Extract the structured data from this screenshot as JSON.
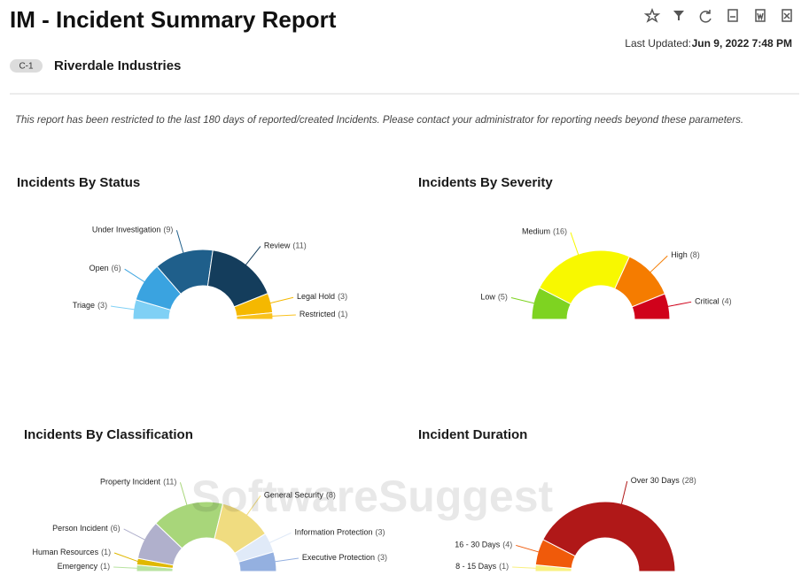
{
  "header": {
    "title": "IM - Incident Summary Report",
    "last_updated_label": "Last Updated:",
    "last_updated": "Jun 9, 2022 7:48 PM",
    "badge": "C-1",
    "organization": "Riverdale Industries"
  },
  "notice": "This report has been restricted to the last 180 days of reported/created Incidents. Please contact your administrator for reporting needs beyond these parameters.",
  "watermark": "SoftwareSuggest",
  "chart_data": [
    {
      "type": "halfdonut",
      "title": "Incidents By Status",
      "categories": [
        "Triage",
        "Open",
        "Under Investigation",
        "Review",
        "Legal Hold",
        "Restricted"
      ],
      "values": [
        3,
        6,
        9,
        11,
        3,
        1
      ],
      "value_labels": [
        "(3)",
        "(6)",
        "(9)",
        "(11)",
        "(3)",
        "(1)"
      ],
      "colors": [
        "#7fd0f5",
        "#3aa3e0",
        "#1f5f8b",
        "#143d5c",
        "#f5b800",
        "#f9c21e"
      ]
    },
    {
      "type": "halfdonut",
      "title": "Incidents By Severity",
      "categories": [
        "Low",
        "Medium",
        "High",
        "Critical"
      ],
      "values": [
        5,
        16,
        8,
        4
      ],
      "value_labels": [
        "(5)",
        "(16)",
        "(8)",
        "(4)"
      ],
      "colors": [
        "#7ed321",
        "#f8f800",
        "#f57c00",
        "#d0021b"
      ]
    },
    {
      "type": "halfdonut",
      "title": "Incidents By Classification",
      "categories": [
        "Emergency",
        "Human Resources",
        "Person Incident",
        "Property Incident",
        "General Security",
        "Information Protection",
        "Executive Protection"
      ],
      "values": [
        1,
        1,
        6,
        11,
        8,
        3,
        3
      ],
      "value_labels": [
        "(1)",
        "(1)",
        "(6)",
        "(11)",
        "(8)",
        "(3)",
        "(3)"
      ],
      "colors": [
        "#b8e3a0",
        "#e0b800",
        "#b0b0cc",
        "#a8d67a",
        "#f0dc80",
        "#e0eaf8",
        "#94b0e0"
      ]
    },
    {
      "type": "halfdonut",
      "title": "Incident Duration",
      "categories": [
        "8 - 15 Days",
        "16 - 30 Days",
        "Over 30 Days"
      ],
      "values": [
        1,
        4,
        28
      ],
      "value_labels": [
        "(1)",
        "(4)",
        "(28)"
      ],
      "colors": [
        "#f9f080",
        "#f05a0a",
        "#b01818"
      ]
    }
  ]
}
